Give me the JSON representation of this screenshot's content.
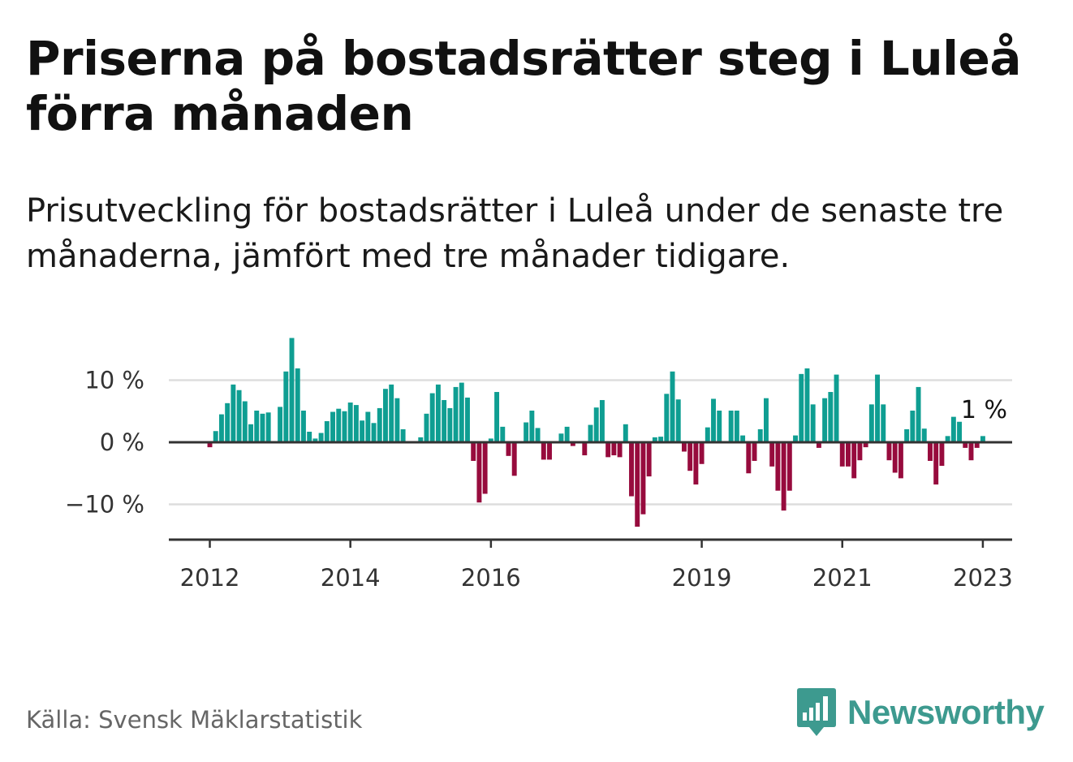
{
  "title": "Priserna på bostadsrätter steg i Luleå förra månaden",
  "subtitle": "Prisutveckling för bostadsrätter i Luleå under de senaste tre månaderna, jämfört med tre månader tidigare.",
  "source": "Källa: Svensk Mäklarstatistik",
  "brand": {
    "name": "Newsworthy",
    "icon": "bar-chart-speech-bubble-icon",
    "color": "#3d9a8f"
  },
  "colors": {
    "positive": "#0f9e92",
    "negative": "#970b3d",
    "grid": "#dddddd",
    "axis": "#333333"
  },
  "chart_data": {
    "type": "bar",
    "title": "",
    "xlabel": "",
    "ylabel": "",
    "ylim": [
      -15.5,
      17
    ],
    "yticks": [
      10,
      0,
      -10
    ],
    "ytick_labels": [
      "10 %",
      "0 %",
      "−10 %"
    ],
    "grid": true,
    "x_start": "2012-01",
    "x_end": "2023-02",
    "x_range": [
      "2011-06",
      "2023-06"
    ],
    "xtick_dates": [
      "2012-01",
      "2014-01",
      "2016-01",
      "2019-01",
      "2021-01",
      "2023-01"
    ],
    "xtick_labels": [
      "2012",
      "2014",
      "2016",
      "2019",
      "2021",
      "2023"
    ],
    "unit": "%",
    "last_value_label": "1 %",
    "values": [
      -0.8,
      1.8,
      4.5,
      6.3,
      9.3,
      8.4,
      6.6,
      2.9,
      5.1,
      4.6,
      4.8,
      null,
      5.7,
      11.4,
      16.8,
      11.9,
      5.1,
      1.7,
      0.6,
      1.5,
      3.4,
      4.9,
      5.4,
      5.0,
      6.4,
      6.0,
      3.5,
      4.9,
      3.1,
      5.5,
      8.6,
      9.3,
      7.1,
      2.1,
      null,
      null,
      0.8,
      4.6,
      7.9,
      9.3,
      6.8,
      5.5,
      8.9,
      9.6,
      7.2,
      -3.0,
      -9.7,
      -8.3,
      0.6,
      8.1,
      2.5,
      -2.2,
      -5.4,
      null,
      3.2,
      5.1,
      2.3,
      -2.8,
      -2.8,
      null,
      1.4,
      2.5,
      -0.6,
      null,
      -2.1,
      2.8,
      5.6,
      6.8,
      -2.4,
      -2.1,
      -2.4,
      2.9,
      -8.7,
      -13.6,
      -11.6,
      -5.5,
      0.8,
      0.9,
      7.8,
      11.4,
      6.9,
      -1.5,
      -4.6,
      -6.8,
      -3.5,
      2.4,
      7.0,
      5.1,
      null,
      5.1,
      5.1,
      1.1,
      -5.0,
      -3.0,
      2.1,
      7.1,
      -3.9,
      -7.8,
      -11.0,
      -7.8,
      1.1,
      11.0,
      11.9,
      6.1,
      -0.9,
      7.1,
      8.1,
      10.9,
      -3.9,
      -3.9,
      -5.8,
      -2.9,
      -0.8,
      6.1,
      10.9,
      6.1,
      -2.9,
      -4.9,
      -5.8,
      2.1,
      5.1,
      8.9,
      2.2,
      -3.0,
      -6.8,
      -3.8,
      1.0,
      4.1,
      3.3,
      -0.9,
      -2.9,
      -0.9,
      1.0
    ]
  }
}
